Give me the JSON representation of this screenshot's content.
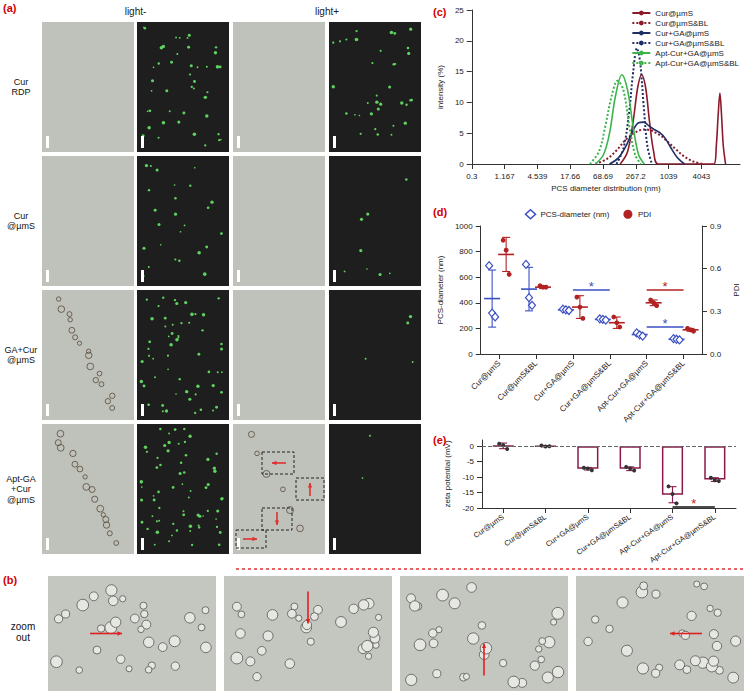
{
  "figure": {
    "panel_a": {
      "label": "(a)",
      "columns": [
        "light-",
        "light+"
      ],
      "rows": [
        "Cur\nRDP",
        "Cur\n@µmS",
        "GA+Cur\n@µmS",
        "Apt-GA\n+Cur\n@µmS"
      ]
    },
    "panel_b": {
      "label": "(b)",
      "text": "zoom\nout"
    }
  },
  "chart_data": [
    {
      "panel": "(c)",
      "type": "line",
      "log": "x",
      "x_label": "PCS diameter distribution (nm)",
      "y_label": "intensity (%)",
      "xlim": [
        0.3,
        20000
      ],
      "xticks": [
        0.3,
        1.167,
        4.539,
        17.66,
        68.69,
        267.2,
        1039,
        4043
      ],
      "ylim": [
        0,
        25
      ],
      "yticks": [
        0,
        5,
        10,
        15,
        20,
        25
      ],
      "grid": false,
      "legend": "upper right",
      "series": [
        {
          "name": "Cur@µmS",
          "color": "#8b1a2b",
          "line_style": "solid",
          "x": [
            140,
            190,
            240,
            290,
            340,
            400,
            470,
            560,
            680,
            6800,
            7500,
            8100,
            8700,
            9300,
            10000,
            11000
          ],
          "values": [
            0,
            2,
            7,
            12.5,
            14.5,
            12.5,
            7,
            2,
            0,
            0,
            3,
            8,
            11.5,
            8,
            3,
            0
          ]
        },
        {
          "name": "Cur@µmS&BL",
          "color": "#8b1a2b",
          "line_style": "dotted",
          "x": [
            50,
            80,
            120,
            170,
            230,
            300,
            380,
            480,
            600,
            780,
            1000,
            1400,
            2000,
            2900,
            4200
          ],
          "values": [
            0,
            0.8,
            2.2,
            3.8,
            4.8,
            5.4,
            5.6,
            5.5,
            5.1,
            4.5,
            3.6,
            2.4,
            1.2,
            0.4,
            0
          ]
        },
        {
          "name": "Cur+GA@µmS",
          "color": "#1f2f66",
          "line_style": "solid",
          "x": [
            90,
            130,
            180,
            240,
            300,
            370,
            460,
            570,
            720,
            900,
            1150,
            1500,
            2000
          ],
          "values": [
            0,
            1,
            3,
            5.5,
            6.7,
            6.8,
            6.2,
            5.6,
            5.1,
            4.2,
            2.6,
            1,
            0
          ]
        },
        {
          "name": "Cur+GA@µmS&BL",
          "color": "#1f2f66",
          "line_style": "dotted",
          "x": [
            120,
            160,
            200,
            240,
            280,
            320,
            370,
            430,
            520
          ],
          "values": [
            0,
            2.5,
            8,
            15,
            18.8,
            16.5,
            9.5,
            3,
            0
          ]
        },
        {
          "name": "Apt-Cur+GA@µmS",
          "color": "#3cb44b",
          "line_style": "solid",
          "x": [
            50,
            70,
            90,
            115,
            150,
            190,
            240,
            300,
            380
          ],
          "values": [
            0,
            1.5,
            5,
            11,
            14.5,
            12,
            6,
            1.5,
            0
          ]
        },
        {
          "name": "Apt-Cur+GA@µmS&BL",
          "color": "#3cb44b",
          "line_style": "dotted",
          "x": [
            40,
            58,
            75,
            98,
            125,
            160,
            205,
            260,
            330
          ],
          "values": [
            0,
            2,
            6,
            11,
            13.5,
            12,
            6,
            1.5,
            0
          ]
        }
      ]
    },
    {
      "panel": "(d)",
      "type": "scatter",
      "categories": [
        "Cur@µmS",
        "Cur@µmS&BL",
        "Cur+GA@µmS",
        "Cur+GA@µmS&BL",
        "Apt-Cur+GA@µmS",
        "Apt-Cur+GA@µmS&BL"
      ],
      "y_label": "PCS-diameter (nm)",
      "y2_label": "PDI",
      "ylim": [
        0,
        1000
      ],
      "yticks": [
        0,
        200,
        400,
        600,
        800,
        1000
      ],
      "y2lim": [
        0,
        0.9
      ],
      "y2ticks": [
        {
          "value": 0,
          "label": "0.0"
        },
        0.3,
        0.6,
        0.9
      ],
      "grid": false,
      "legend": "upper center",
      "series": [
        {
          "name": "PCS-diameter (nm)",
          "color": "#3a4fc4",
          "marker": "diamond",
          "points": [
            [
              690,
              320,
              290
            ],
            [
              700,
              440,
              380
            ],
            [
              350,
              345,
              340
            ],
            [
              275,
              270,
              265
            ],
            [
              165,
              150,
              140
            ],
            [
              120,
              115,
              110
            ]
          ],
          "mean": [
            433,
            507,
            345,
            270,
            152,
            115
          ],
          "sd": [
            223,
            170,
            5,
            5,
            13,
            5
          ]
        },
        {
          "name": "PDI",
          "color": "#b22222",
          "marker": "circle",
          "axis": "y2",
          "points": [
            [
              0.8,
              0.73,
              0.56
            ],
            [
              0.48,
              0.47,
              0.47
            ],
            [
              0.4,
              0.33,
              0.25
            ],
            [
              0.26,
              0.22,
              0.19
            ],
            [
              0.38,
              0.36,
              0.34
            ],
            [
              0.18,
              0.17,
              0.16
            ]
          ],
          "mean": [
            0.7,
            0.47,
            0.33,
            0.22,
            0.36,
            0.17
          ],
          "sd": [
            0.12,
            0.01,
            0.08,
            0.04,
            0.02,
            0.01
          ]
        }
      ],
      "annotations": [
        {
          "text": "*",
          "color": "#3a4fc4",
          "axis": "y",
          "from": "Cur+GA@µmS",
          "to": "Cur+GA@µmS&BL",
          "y": 500
        },
        {
          "text": "*",
          "color": "#3a4fc4",
          "axis": "y",
          "from": "Apt-Cur+GA@µmS",
          "to": "Apt-Cur+GA@µmS&BL",
          "y": 210
        },
        {
          "text": "*",
          "color": "#b22222",
          "axis": "y2",
          "from": "Apt-Cur+GA@µmS",
          "to": "Apt-Cur+GA@µmS&BL",
          "y": 0.45
        }
      ]
    },
    {
      "panel": "(e)",
      "type": "bar",
      "categories": [
        "Cur@µmS",
        "Cur@µmS&BL",
        "Cur+GA@µmS",
        "Cur+GA@µmS&BL",
        "Apt-Cur+GA@µmS",
        "Apt-Cur+GA@µmS&BL"
      ],
      "y_label": "zeta potential (mV)",
      "ylim": [
        -20,
        2
      ],
      "yticks": [
        -20,
        -15,
        -10,
        -5,
        0
      ],
      "grid": false,
      "color": "#8b1a4a",
      "values": [
        0.1,
        0.0,
        -7.3,
        -7.3,
        -15.7,
        -10.8
      ],
      "sd": [
        0.9,
        0.2,
        0.4,
        0.6,
        2.6,
        0.6
      ],
      "points": [
        [
          0.8,
          0.3,
          -0.9
        ],
        [
          0.2,
          -0.1,
          0.0
        ],
        [
          -7.0,
          -7.2,
          -7.8
        ],
        [
          -6.7,
          -7.2,
          -7.9
        ],
        [
          -13.0,
          -15.5,
          -18.5
        ],
        [
          -10.2,
          -11.0,
          -11.3
        ]
      ],
      "annotations": [
        {
          "text": "*",
          "color": "#e02020",
          "from": "Apt-Cur+GA@µmS",
          "to": "Apt-Cur+GA@µmS&BL",
          "y": -19.7
        }
      ]
    }
  ]
}
